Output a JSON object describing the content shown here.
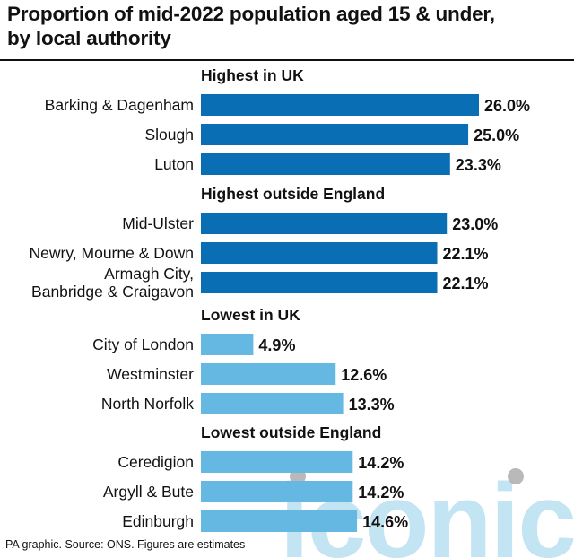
{
  "header": {
    "title_line1": "Proportion of mid-2022 population aged 15 & under,",
    "title_line2": "by local authority"
  },
  "chart_data": {
    "type": "bar",
    "orientation": "horizontal",
    "unit": "%",
    "xlim": [
      0,
      26
    ],
    "grid": false,
    "groups": [
      {
        "heading": "Highest in UK",
        "color": "#0a6eb4",
        "items": [
          {
            "label": [
              "Barking & Dagenham"
            ],
            "value": 26.0,
            "value_label": "26.0%"
          },
          {
            "label": [
              "Slough"
            ],
            "value": 25.0,
            "value_label": "25.0%"
          },
          {
            "label": [
              "Luton"
            ],
            "value": 23.3,
            "value_label": "23.3%"
          }
        ]
      },
      {
        "heading": "Highest outside England",
        "color": "#0a6eb4",
        "items": [
          {
            "label": [
              "Mid-Ulster"
            ],
            "value": 23.0,
            "value_label": "23.0%"
          },
          {
            "label": [
              "Newry, Mourne & Down"
            ],
            "value": 22.1,
            "value_label": "22.1%"
          },
          {
            "label": [
              "Armagh City,",
              "Banbridge & Craigavon"
            ],
            "value": 22.1,
            "value_label": "22.1%"
          }
        ]
      },
      {
        "heading": "Lowest in UK",
        "color": "#64b8e2",
        "items": [
          {
            "label": [
              "City of London"
            ],
            "value": 4.9,
            "value_label": "4.9%"
          },
          {
            "label": [
              "Westminster"
            ],
            "value": 12.6,
            "value_label": "12.6%"
          },
          {
            "label": [
              "North Norfolk"
            ],
            "value": 13.3,
            "value_label": "13.3%"
          }
        ]
      },
      {
        "heading": "Lowest outside England",
        "color": "#64b8e2",
        "items": [
          {
            "label": [
              "Ceredigion"
            ],
            "value": 14.2,
            "value_label": "14.2%"
          },
          {
            "label": [
              "Argyll & Bute"
            ],
            "value": 14.2,
            "value_label": "14.2%"
          },
          {
            "label": [
              "Edinburgh"
            ],
            "value": 14.6,
            "value_label": "14.6%"
          }
        ]
      }
    ]
  },
  "footer": {
    "source": "PA graphic. Source: ONS. Figures are estimates"
  },
  "watermark": {
    "text": "iconic",
    "color": "#c2e4f3"
  }
}
